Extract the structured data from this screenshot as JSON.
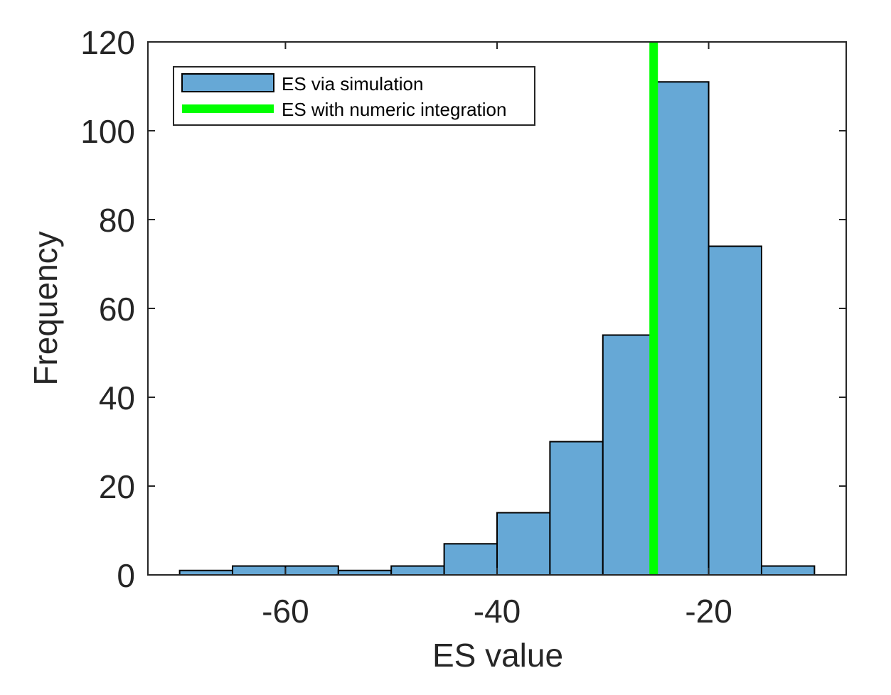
{
  "chart_data": {
    "type": "bar",
    "subtype": "histogram",
    "xlabel": "ES value",
    "ylabel": "Frequency",
    "xlim": [
      -73,
      -7
    ],
    "ylim": [
      0,
      120
    ],
    "x_ticks": [
      -60,
      -40,
      -20
    ],
    "y_ticks": [
      0,
      20,
      40,
      60,
      80,
      100,
      120
    ],
    "bin_edges": [
      -70,
      -65,
      -60,
      -55,
      -50,
      -45,
      -40,
      -35,
      -30,
      -25,
      -20,
      -15,
      -10
    ],
    "values": [
      1,
      2,
      2,
      1,
      2,
      7,
      14,
      30,
      54,
      111,
      74,
      2
    ],
    "vline_x": -25.2,
    "colors": {
      "bar_fill": "#66a8d6",
      "bar_edge": "#000000",
      "vline": "#00ff00",
      "axis": "#262626"
    },
    "legend": {
      "position": "top-left",
      "entries": [
        "ES via simulation",
        "ES with numeric integration"
      ]
    },
    "grid": false
  }
}
